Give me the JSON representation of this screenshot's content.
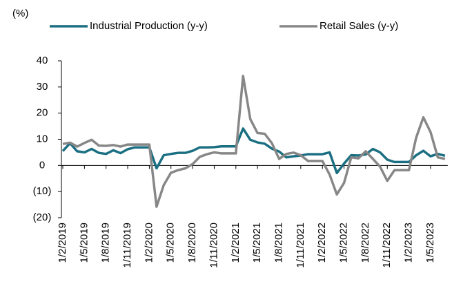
{
  "chart_data": {
    "type": "line",
    "unit_label": "(%)",
    "categories": [
      "1/2/2019",
      null,
      null,
      "1/5/2019",
      null,
      null,
      "1/8/2019",
      null,
      null,
      "1/11/2019",
      null,
      null,
      "1/2/2020",
      null,
      null,
      "1/5/2020",
      null,
      null,
      "1/8/2020",
      null,
      null,
      "1/11/2020",
      null,
      null,
      "1/2/2021",
      null,
      null,
      "1/5/2021",
      null,
      null,
      "1/8/2021",
      null,
      null,
      "1/11/2021",
      null,
      null,
      "1/2/2022",
      null,
      null,
      "1/5/2022",
      null,
      null,
      "1/8/2022",
      null,
      null,
      "1/11/2022",
      null,
      null,
      "1/2/2023",
      null,
      null,
      "1/5/2023",
      null,
      null
    ],
    "series": [
      {
        "name": "Industrial Production (y-y)",
        "color": "#1b6f82",
        "values": [
          5.5,
          8.5,
          5.4,
          5,
          6.3,
          4.8,
          4.4,
          5.8,
          4.7,
          6.2,
          6.9,
          6.9,
          6.9,
          -1.1,
          3.9,
          4.4,
          4.8,
          4.8,
          5.6,
          6.9,
          6.9,
          7.0,
          7.3,
          7.3,
          7.3,
          14.1,
          9.8,
          8.8,
          8.3,
          6.4,
          5.3,
          3.1,
          3.5,
          3.8,
          4.3,
          4.3,
          4.3,
          5.0,
          -2.9,
          0.7,
          3.9,
          3.8,
          4.2,
          6.3,
          5.0,
          2.2,
          1.3,
          1.3,
          1.3,
          3.9,
          5.6,
          3.5,
          4.4,
          3.7
        ]
      },
      {
        "name": "Retail Sales (y-y)",
        "color": "#878787",
        "values": [
          8.2,
          8.7,
          7.2,
          8.6,
          9.8,
          7.6,
          7.5,
          7.8,
          7.2,
          8.0,
          8.0,
          8.0,
          8.0,
          -15.8,
          -7.5,
          -2.8,
          -1.8,
          -1.1,
          0.5,
          3.3,
          4.3,
          5.0,
          4.6,
          4.6,
          4.6,
          34.2,
          17.7,
          12.4,
          12.1,
          8.5,
          2.5,
          4.4,
          4.9,
          3.9,
          1.7,
          1.7,
          1.7,
          -3.5,
          -11.1,
          -6.7,
          3.1,
          2.7,
          5.4,
          2.5,
          -0.5,
          -5.9,
          -1.8,
          -1.8,
          -1.8,
          10.6,
          18.4,
          12.7,
          3.1,
          2.5
        ]
      }
    ],
    "ylim": [
      -20,
      40
    ],
    "yticks": [
      40,
      30,
      20,
      10,
      0,
      {
        "value": -10,
        "label": "(10)"
      },
      {
        "value": -20,
        "label": "(20)"
      }
    ],
    "legend": "top"
  }
}
